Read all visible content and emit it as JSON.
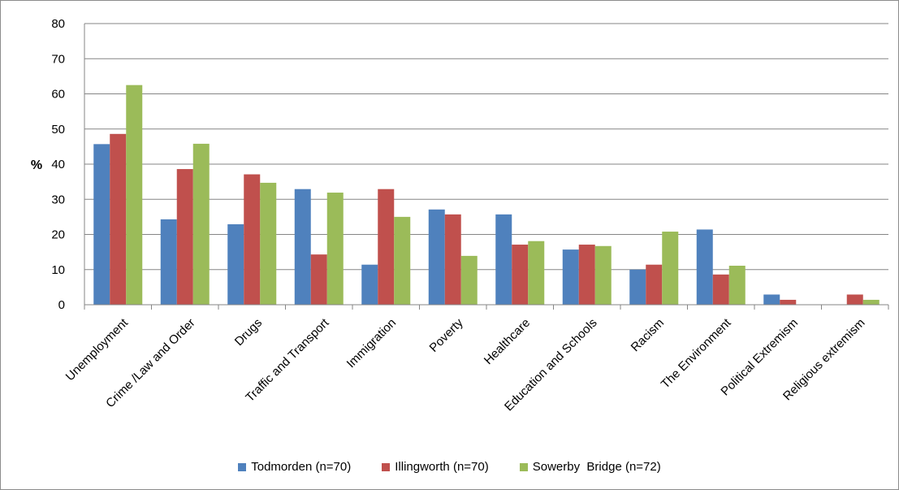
{
  "chart_data": {
    "type": "bar",
    "title": "",
    "xlabel": "",
    "ylabel": "%",
    "ylim": [
      0,
      80
    ],
    "yticks": [
      0,
      10,
      20,
      30,
      40,
      50,
      60,
      70,
      80
    ],
    "grid": true,
    "legend_position": "bottom",
    "categories": [
      "Unemployment",
      "Crime /Law and Order",
      "Drugs",
      "Traffic and Transport",
      "Immigration",
      "Poverty",
      "Healthcare",
      "Education and Schools",
      "Racism",
      "The Environment",
      "Political Extremism",
      "Religious extremism"
    ],
    "series": [
      {
        "name": "Todmorden (n=70)",
        "color": "#4f81bd",
        "values": [
          45.7,
          24.3,
          22.9,
          32.9,
          11.4,
          27.1,
          25.7,
          15.7,
          10.0,
          21.4,
          2.9,
          0
        ]
      },
      {
        "name": "Illingworth (n=70)",
        "color": "#c0504d",
        "values": [
          48.6,
          38.6,
          37.1,
          14.3,
          32.9,
          25.7,
          17.1,
          17.1,
          11.4,
          8.6,
          1.4,
          2.9
        ]
      },
      {
        "name": "Sowerby  Bridge (n=72)",
        "color": "#9bbb59",
        "values": [
          62.5,
          45.8,
          34.7,
          31.9,
          25.0,
          13.9,
          18.1,
          16.7,
          20.8,
          11.1,
          0,
          1.4
        ]
      }
    ]
  }
}
